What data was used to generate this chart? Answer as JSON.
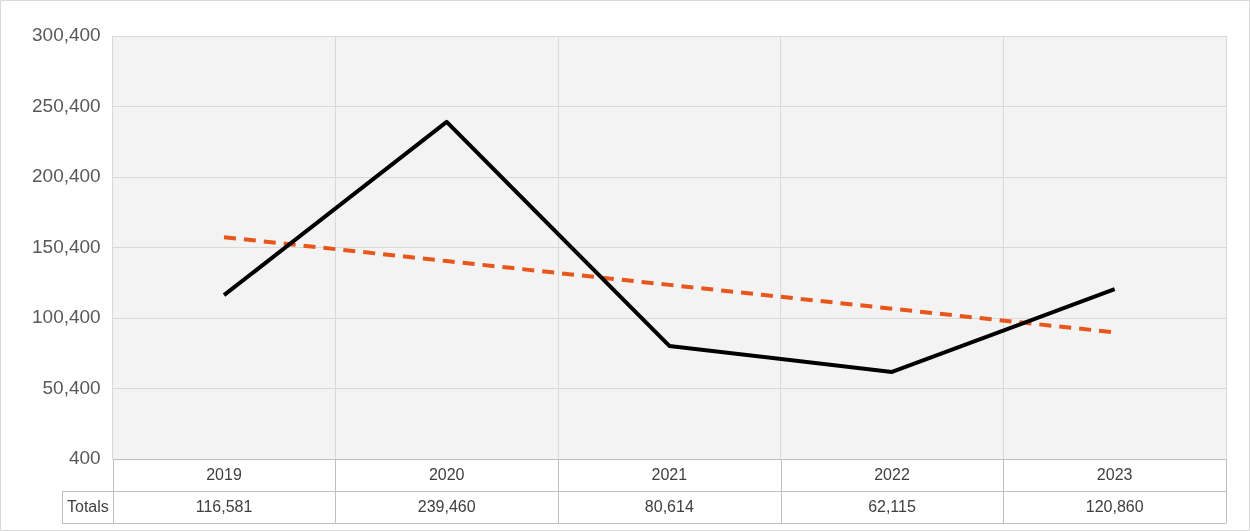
{
  "chart_data": {
    "type": "line",
    "categories": [
      "2019",
      "2020",
      "2021",
      "2022",
      "2023"
    ],
    "series": [
      {
        "name": "Totals",
        "color": "#000000",
        "values": [
          116581,
          239460,
          80614,
          62115,
          120860
        ],
        "value_labels": [
          "116,581",
          "239,460",
          "80,614",
          "62,115",
          "120,860"
        ]
      },
      {
        "color": "#e8561c",
        "values": [
          157700,
          140800,
          123900,
          107000,
          90200
        ],
        "line_style": "dashed"
      }
    ],
    "ylim": [
      400,
      300400
    ],
    "yticks": [
      400,
      {
        "value": 50400,
        "label": "50,400"
      },
      {
        "value": 100400,
        "label": "100,400"
      },
      {
        "value": 150400,
        "label": "150,400"
      },
      {
        "value": 200400,
        "label": "200,400"
      },
      {
        "value": 250400,
        "label": "250,400"
      },
      {
        "value": 300400,
        "label": "300,400"
      }
    ],
    "grid": true,
    "legend": false,
    "marker": "none"
  }
}
